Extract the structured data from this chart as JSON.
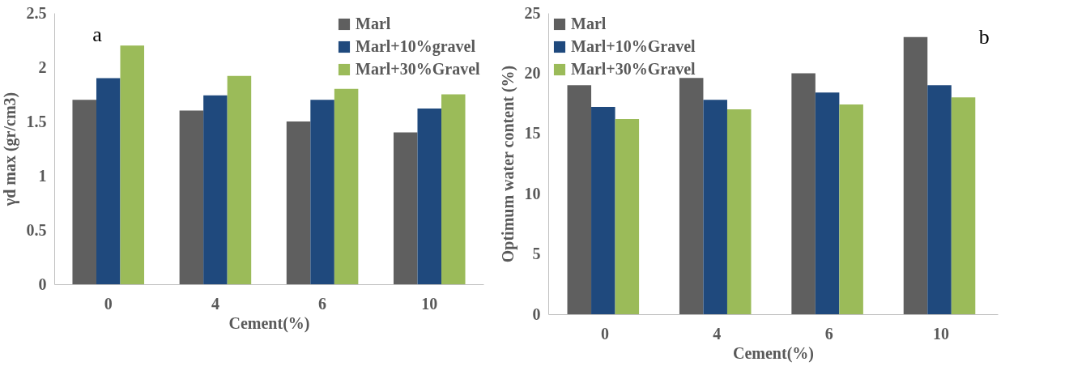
{
  "chart_data": [
    {
      "type": "bar",
      "xlabel": "Cement(%)",
      "ylabel": "γd max (gr/cm3)",
      "categories": [
        "0",
        "4",
        "6",
        "10"
      ],
      "ylim": [
        0,
        2.5
      ],
      "yticks": [
        0,
        0.5,
        1,
        1.5,
        2,
        2.5
      ],
      "legend": "top right",
      "annotations": [
        "a"
      ],
      "series": [
        {
          "name": "Marl",
          "color": "#5f5f5f",
          "values": [
            1.7,
            1.6,
            1.5,
            1.4
          ]
        },
        {
          "name": "Marl+10%gravel",
          "color": "#1f497d",
          "values": [
            1.9,
            1.74,
            1.7,
            1.62
          ]
        },
        {
          "name": "Marl+30%Gravel",
          "color": "#9bbb59",
          "values": [
            2.2,
            1.92,
            1.8,
            1.75
          ]
        }
      ]
    },
    {
      "type": "bar",
      "xlabel": "Cement(%)",
      "ylabel": "Optimum water content (%)",
      "categories": [
        "0",
        "4",
        "6",
        "10"
      ],
      "ylim": [
        0,
        25
      ],
      "yticks": [
        0,
        5,
        10,
        15,
        20,
        25
      ],
      "legend": "top left",
      "annotations": [
        "b"
      ],
      "series": [
        {
          "name": "Marl",
          "color": "#5f5f5f",
          "values": [
            19,
            19.6,
            20,
            23
          ]
        },
        {
          "name": "Marl+10%Gravel",
          "color": "#1f497d",
          "values": [
            17.2,
            17.8,
            18.4,
            19
          ]
        },
        {
          "name": "Marl+30%Gravel",
          "color": "#9bbb59",
          "values": [
            16.2,
            17,
            17.4,
            18
          ]
        }
      ]
    }
  ]
}
